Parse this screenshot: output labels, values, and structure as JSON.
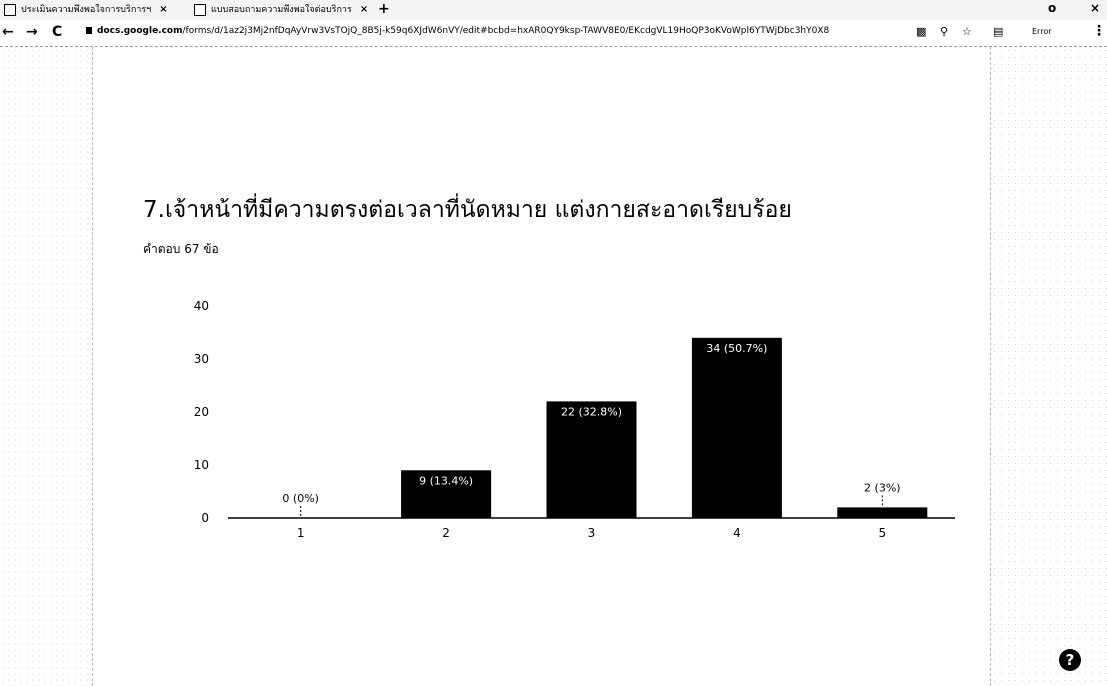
{
  "browser": {
    "tabs": [
      {
        "label": "ประเมินความพึงพอใจการบริการฯ"
      },
      {
        "label": "แบบสอบถามความพึงพอใจต่อบริการ"
      }
    ],
    "new_tab": "+",
    "url_domain": "docs.google.com",
    "url_path": "/forms/d/1az2j3Mj2nfDqAyVrw3VsTOjQ_8B5j-k59q6XJdW6nVY/edit#bcbd=hxAR0QY9ksp-TAWV8E0/EKcdgVL19HoQP3oKVoWpl6YTWjDbc3hY0X8",
    "error_label": "Error"
  },
  "question": {
    "title": "7.เจ้าหน้าที่มีความตรงต่อเวลาที่นัดหมาย แต่งกายสะอาดเรียบร้อย",
    "responses": "คำตอบ 67 ข้อ"
  },
  "chart_data": {
    "type": "bar",
    "categories": [
      "1",
      "2",
      "3",
      "4",
      "5"
    ],
    "values": [
      0,
      9,
      22,
      34,
      2
    ],
    "data_labels": [
      "0 (0%)",
      "9 (13.4%)",
      "22 (32.8%)",
      "34 (50.7%)",
      "2 (3%)"
    ],
    "yticks": [
      "0",
      "10",
      "20",
      "30",
      "40"
    ],
    "ylim": [
      0,
      40
    ],
    "bar_color": "#000000",
    "grid": false
  },
  "colors": {
    "bar": "#000000",
    "background": "#ffffff"
  }
}
